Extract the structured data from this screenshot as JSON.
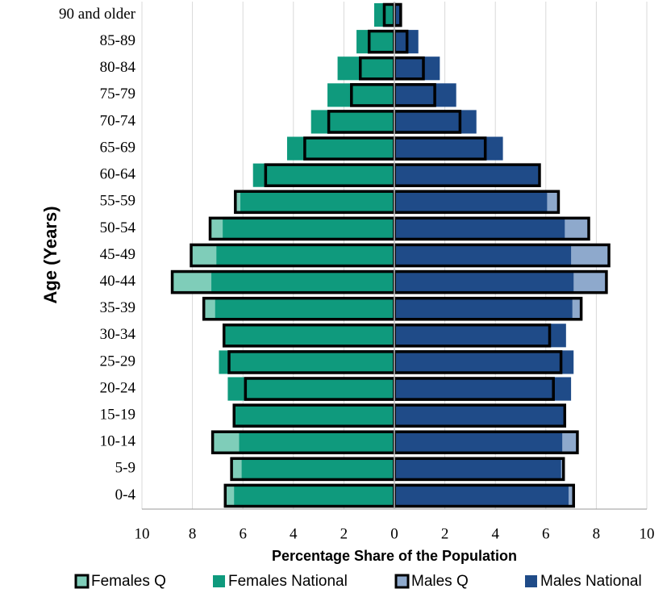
{
  "chart_data": {
    "type": "pyramid",
    "x_label": "Percentage Share of the Population",
    "y_label": "Age (Years)",
    "categories": [
      "0-4",
      "5-9",
      "10-14",
      "15-19",
      "20-24",
      "25-29",
      "30-34",
      "35-39",
      "40-44",
      "45-49",
      "50-54",
      "55-59",
      "60-64",
      "65-69",
      "70-74",
      "75-79",
      "80-84",
      "85-89",
      "90 and older"
    ],
    "series": [
      {
        "name": "Females Q",
        "color": "#7fcdb9",
        "edge": "#000000",
        "values": [
          -6.7,
          -6.45,
          -7.2,
          -6.35,
          -5.9,
          -6.55,
          -6.75,
          -7.55,
          -8.8,
          -8.05,
          -7.3,
          -6.3,
          -5.1,
          -3.55,
          -2.6,
          -1.7,
          -1.35,
          -1.0,
          -0.4
        ]
      },
      {
        "name": "Females National",
        "color": "#0f9a7d",
        "values": [
          -6.35,
          -6.05,
          -6.15,
          -6.35,
          -6.6,
          -6.95,
          -6.7,
          -7.1,
          -7.25,
          -7.05,
          -6.8,
          -6.1,
          -5.6,
          -4.25,
          -3.3,
          -2.65,
          -2.25,
          -1.5,
          -0.8
        ]
      },
      {
        "name": "Males Q",
        "color": "#8ea9cc",
        "edge": "#000000",
        "values": [
          7.1,
          6.7,
          7.25,
          6.75,
          6.3,
          6.6,
          6.15,
          7.4,
          8.4,
          8.5,
          7.7,
          6.5,
          5.75,
          3.6,
          2.6,
          1.6,
          1.15,
          0.5,
          0.25
        ]
      },
      {
        "name": "Males National",
        "color": "#1f4b88",
        "values": [
          6.9,
          6.6,
          6.65,
          6.7,
          7.0,
          7.1,
          6.8,
          7.05,
          7.1,
          7.0,
          6.75,
          6.05,
          5.7,
          4.3,
          3.25,
          2.45,
          1.8,
          0.95,
          0.3
        ]
      }
    ],
    "xlim": [
      -10,
      10
    ],
    "xticks": [
      {
        "value": -10,
        "label": "10"
      },
      {
        "value": -8,
        "label": "8"
      },
      {
        "value": -6,
        "label": "6"
      },
      {
        "value": -4,
        "label": "4"
      },
      {
        "value": -2,
        "label": "2"
      },
      0,
      2,
      4,
      6,
      8,
      10
    ],
    "grid": true
  }
}
